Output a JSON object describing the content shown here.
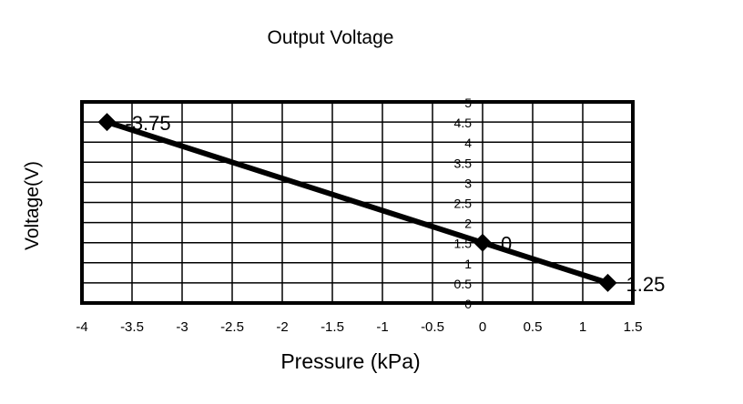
{
  "chart_data": {
    "type": "line",
    "title": "Output Voltage",
    "xlabel": "Pressure (kPa)",
    "ylabel": "Voltage(V)",
    "xlim": [
      -4,
      1.5
    ],
    "ylim": [
      0,
      5
    ],
    "x_ticks": [
      "-4",
      "-3.5",
      "-3",
      "-2.5",
      "-2",
      "-1.5",
      "-1",
      "-0.5",
      "0",
      "0.5",
      "1",
      "1.5"
    ],
    "y_ticks": [
      "0",
      "0.5",
      "1",
      "1.5",
      "2",
      "2.5",
      "3",
      "3.5",
      "4",
      "4.5",
      "5"
    ],
    "grid": true,
    "series": [
      {
        "x": [
          -3.75,
          0,
          1.25
        ],
        "y": [
          4.5,
          1.5,
          0.5
        ],
        "color": "#000000",
        "marker": "diamond"
      }
    ],
    "data_labels": [
      "-3.75",
      "0",
      "1.25"
    ]
  }
}
